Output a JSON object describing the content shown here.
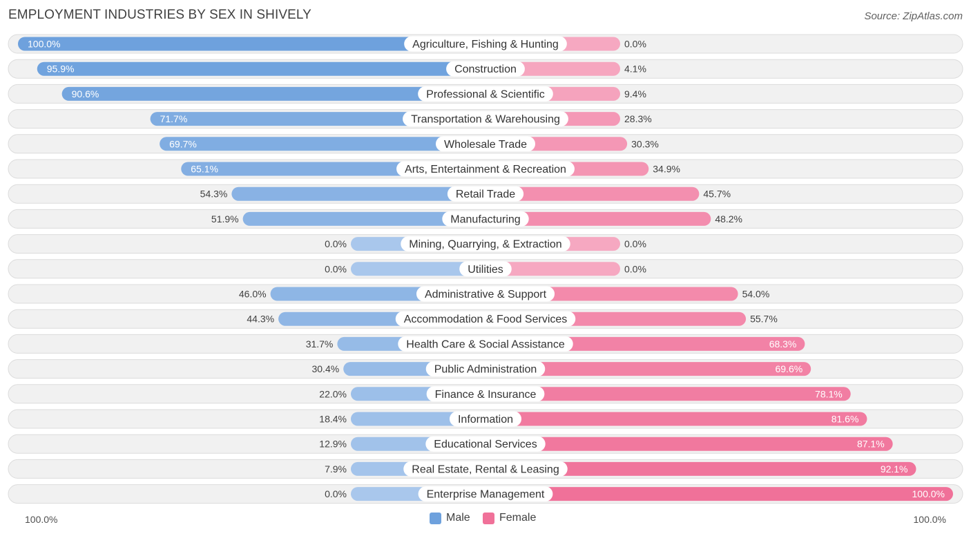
{
  "title": "EMPLOYMENT INDUSTRIES BY SEX IN SHIVELY",
  "source": "Source: ZipAtlas.com",
  "colors": {
    "male": "#6ea1dd",
    "male_light": "#a9c7ec",
    "female": "#f07199",
    "female_light": "#f6a8c1",
    "row_bg": "#f1f1f1",
    "row_border": "#dcdcdc"
  },
  "chart_data": {
    "type": "bar",
    "orientation": "horizontal-diverging",
    "title": "EMPLOYMENT INDUSTRIES BY SEX IN SHIVELY",
    "xlim": [
      -100,
      100
    ],
    "axis_left_label": "100.0%",
    "axis_right_label": "100.0%",
    "legend": [
      "Male",
      "Female"
    ],
    "categories": [
      "Agriculture, Fishing & Hunting",
      "Construction",
      "Professional & Scientific",
      "Transportation & Warehousing",
      "Wholesale Trade",
      "Arts, Entertainment & Recreation",
      "Retail Trade",
      "Manufacturing",
      "Mining, Quarrying, & Extraction",
      "Utilities",
      "Administrative & Support",
      "Accommodation & Food Services",
      "Health Care & Social Assistance",
      "Public Administration",
      "Finance & Insurance",
      "Information",
      "Educational Services",
      "Real Estate, Rental & Leasing",
      "Enterprise Management"
    ],
    "series": [
      {
        "name": "Male",
        "values": [
          100.0,
          95.9,
          90.6,
          71.7,
          69.7,
          65.1,
          54.3,
          51.9,
          0.0,
          0.0,
          46.0,
          44.3,
          31.7,
          30.4,
          22.0,
          18.4,
          12.9,
          7.9,
          0.0
        ],
        "labels": [
          "100.0%",
          "95.9%",
          "90.6%",
          "71.7%",
          "69.7%",
          "65.1%",
          "54.3%",
          "51.9%",
          "0.0%",
          "0.0%",
          "46.0%",
          "44.3%",
          "31.7%",
          "30.4%",
          "22.0%",
          "18.4%",
          "12.9%",
          "7.9%",
          "0.0%"
        ]
      },
      {
        "name": "Female",
        "values": [
          0.0,
          4.1,
          9.4,
          28.3,
          30.3,
          34.9,
          45.7,
          48.2,
          0.0,
          0.0,
          54.0,
          55.7,
          68.3,
          69.6,
          78.1,
          81.6,
          87.1,
          92.1,
          100.0
        ],
        "labels": [
          "0.0%",
          "4.1%",
          "9.4%",
          "28.3%",
          "30.3%",
          "34.9%",
          "45.7%",
          "48.2%",
          "0.0%",
          "0.0%",
          "54.0%",
          "55.7%",
          "68.3%",
          "69.6%",
          "78.1%",
          "81.6%",
          "87.1%",
          "92.1%",
          "100.0%"
        ]
      }
    ]
  }
}
